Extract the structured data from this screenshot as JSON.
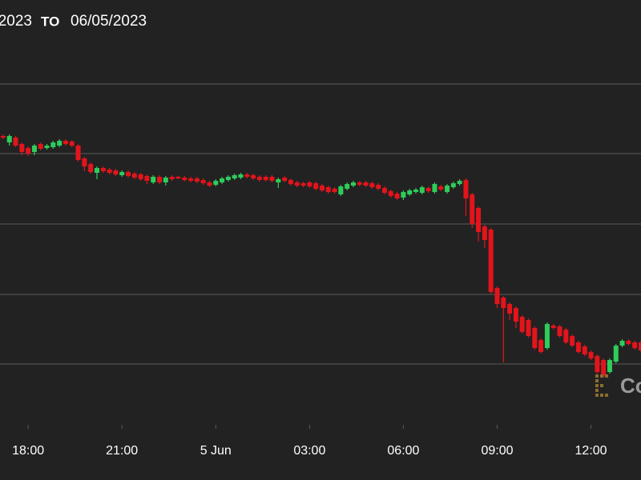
{
  "chart_data": {
    "type": "candlestick",
    "date_from": "2023",
    "to_label": "TO",
    "date_to": "06/05/2023",
    "watermark": "Co",
    "up_color": "#2ecc5a",
    "down_color": "#e3141b",
    "grid": true,
    "xlim": [
      -6.9,
      13.6
    ],
    "ylim": [
      20,
      550
    ],
    "yticks": [
      95,
      182,
      270,
      358,
      445
    ],
    "xticks": [
      {
        "value": -6,
        "label": "18:00"
      },
      {
        "value": -3,
        "label": "21:00"
      },
      {
        "value": 0,
        "label": "5 Jun"
      },
      {
        "value": 3,
        "label": "03:00"
      },
      {
        "value": 6,
        "label": "06:00"
      },
      {
        "value": 9,
        "label": "09:00"
      },
      {
        "value": 12,
        "label": "12:00"
      }
    ],
    "x": [
      -6.8,
      -6.6,
      -6.4,
      -6.2,
      -6,
      -5.8,
      -5.6,
      -5.4,
      -5.2,
      -5,
      -4.8,
      -4.6,
      -4.4,
      -4.2,
      -4,
      -3.8,
      -3.6,
      -3.4,
      -3.2,
      -3,
      -2.8,
      -2.6,
      -2.4,
      -2.2,
      -2,
      -1.8,
      -1.6,
      -1.4,
      -1.2,
      -1,
      -0.8,
      -0.6,
      -0.4,
      -0.2,
      0,
      0.2,
      0.4,
      0.6,
      0.8,
      1,
      1.2,
      1.4,
      1.6,
      1.8,
      2,
      2.2,
      2.4,
      2.6,
      2.8,
      3,
      3.2,
      3.4,
      3.6,
      3.8,
      4,
      4.2,
      4.4,
      4.6,
      4.8,
      5,
      5.2,
      5.4,
      5.6,
      5.8,
      6,
      6.2,
      6.4,
      6.6,
      6.8,
      7,
      7.2,
      7.4,
      7.6,
      7.8,
      8,
      8.2,
      8.4,
      8.6,
      8.8,
      9,
      9.2,
      9.4,
      9.6,
      9.8,
      10,
      10.2,
      10.4,
      10.6,
      10.8,
      11,
      11.2,
      11.4,
      11.6,
      11.8,
      12,
      12.2,
      12.4,
      12.6,
      12.8,
      13,
      13.2,
      13.4,
      13.6
    ],
    "open": [
      380,
      372,
      378,
      370,
      365,
      360,
      370,
      365,
      366,
      368,
      374,
      373,
      368,
      352,
      345,
      334,
      340,
      338,
      337,
      331,
      335,
      333,
      332,
      330,
      322,
      329,
      322,
      329,
      329,
      328,
      327,
      327,
      325,
      322,
      319,
      322,
      325,
      327,
      328,
      332,
      331,
      329,
      329,
      329,
      322,
      328,
      325,
      322,
      321,
      322,
      321,
      318,
      316,
      314,
      307,
      314,
      318,
      322,
      322,
      321,
      319,
      315,
      311,
      308,
      303,
      307,
      310,
      309,
      315,
      310,
      317,
      310,
      316,
      320,
      325,
      307,
      290,
      267,
      263,
      190,
      178,
      170,
      165,
      154,
      150,
      140,
      125,
      115,
      143,
      142,
      138,
      130,
      122,
      117,
      110,
      105,
      100,
      85,
      98,
      118,
      124,
      122,
      122
    ],
    "high": [
      382,
      382,
      380,
      372,
      367,
      370,
      372,
      370,
      374,
      376,
      376,
      375,
      370,
      354,
      347,
      342,
      342,
      340,
      339,
      337,
      337,
      335,
      334,
      332,
      331,
      331,
      330,
      331,
      330,
      330,
      329,
      329,
      327,
      324,
      326,
      329,
      331,
      333,
      334,
      334,
      333,
      331,
      331,
      331,
      328,
      330,
      327,
      324,
      323,
      324,
      323,
      320,
      318,
      316,
      319,
      322,
      324,
      324,
      324,
      323,
      321,
      317,
      313,
      310,
      312,
      314,
      315,
      318,
      317,
      322,
      319,
      320,
      323,
      326,
      327,
      309,
      292,
      269,
      265,
      192,
      180,
      172,
      167,
      156,
      152,
      142,
      127,
      147,
      145,
      144,
      140,
      132,
      124,
      119,
      112,
      107,
      102,
      102,
      120,
      126,
      126,
      124,
      124
    ],
    "low": [
      376,
      368,
      366,
      356,
      355,
      356,
      362,
      363,
      364,
      366,
      368,
      366,
      348,
      336,
      333,
      326,
      334,
      332,
      330,
      329,
      328,
      326,
      324,
      320,
      320,
      320,
      318,
      324,
      326,
      323,
      322,
      321,
      319,
      316,
      317,
      320,
      323,
      325,
      326,
      327,
      325,
      323,
      323,
      322,
      315,
      322,
      318,
      316,
      316,
      315,
      312,
      310,
      308,
      308,
      305,
      312,
      316,
      317,
      316,
      314,
      312,
      307,
      303,
      300,
      300,
      305,
      308,
      307,
      309,
      308,
      311,
      308,
      314,
      318,
      280,
      265,
      248,
      240,
      183,
      165,
      97,
      150,
      140,
      133,
      128,
      113,
      108,
      113,
      138,
      128,
      120,
      116,
      108,
      105,
      100,
      83,
      78,
      83,
      96,
      116,
      118,
      113,
      110
    ],
    "close": [
      378,
      380,
      368,
      360,
      358,
      368,
      364,
      368,
      372,
      374,
      370,
      368,
      350,
      342,
      335,
      340,
      336,
      334,
      332,
      335,
      330,
      328,
      326,
      324,
      329,
      322,
      328,
      326,
      327,
      325,
      324,
      323,
      321,
      318,
      324,
      327,
      329,
      331,
      332,
      329,
      327,
      325,
      325,
      324,
      326,
      324,
      320,
      318,
      318,
      317,
      314,
      312,
      310,
      310,
      317,
      320,
      322,
      319,
      318,
      316,
      314,
      309,
      305,
      302,
      310,
      312,
      313,
      316,
      311,
      320,
      313,
      318,
      321,
      324,
      302,
      270,
      260,
      250,
      185,
      170,
      165,
      158,
      148,
      135,
      130,
      115,
      110,
      145,
      140,
      130,
      122,
      118,
      110,
      107,
      102,
      85,
      80,
      100,
      118,
      124,
      120,
      115,
      112
    ]
  }
}
